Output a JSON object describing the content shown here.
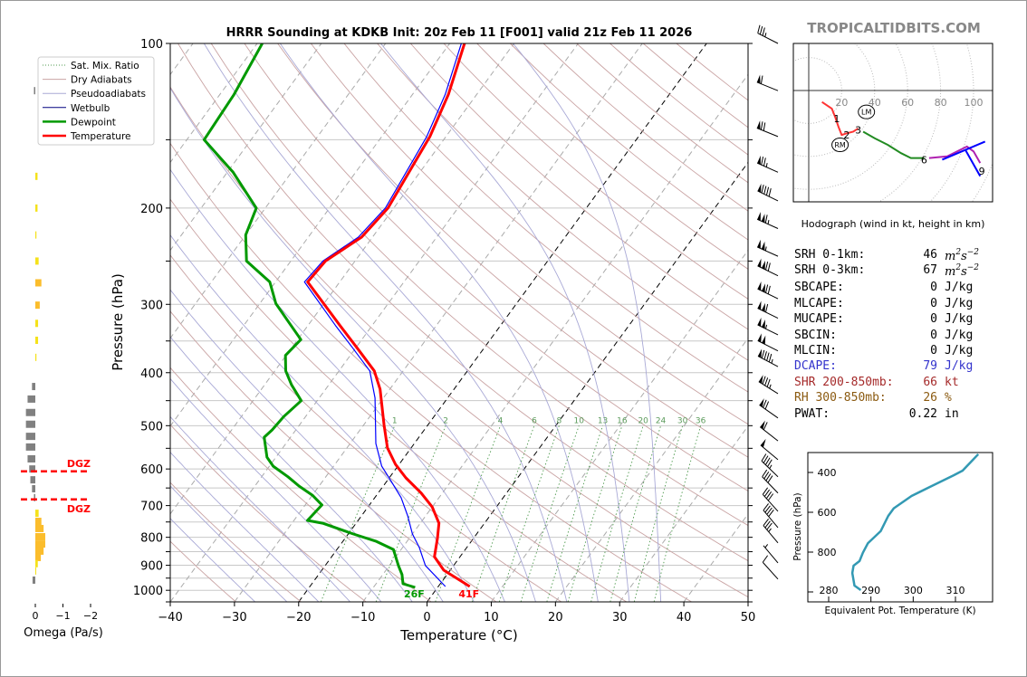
{
  "header": {
    "watermark": "TROPICALTIDBITS.COM"
  },
  "legend": [
    {
      "label": "Sat. Mix. Ratio",
      "color": "#4f9a4f",
      "style": "dotted"
    },
    {
      "label": "Dry Adiabats",
      "color": "#c9a3a3",
      "style": "solid"
    },
    {
      "label": "Pseudoadiabats",
      "color": "#a9a9d6",
      "style": "solid"
    },
    {
      "label": "Wetbulb",
      "color": "#000080",
      "style": "solid"
    },
    {
      "label": "Dewpoint",
      "color": "#009900",
      "style": "thick"
    },
    {
      "label": "Temperature",
      "color": "#ff0000",
      "style": "thick"
    }
  ],
  "stats": [
    {
      "label": "SRH 0-1km:",
      "value": "46",
      "unit": "m2s-2",
      "unit_base": "m",
      "unit_sup1": "2",
      "unit_mid": "s",
      "unit_sup2": "−2",
      "color": "#000000"
    },
    {
      "label": "SRH 0-3km:",
      "value": "67",
      "unit": "m2s-2",
      "unit_base": "m",
      "unit_sup1": "2",
      "unit_mid": "s",
      "unit_sup2": "−2",
      "color": "#000000"
    },
    {
      "label": "SBCAPE:",
      "value": "0",
      "unit": "J/kg",
      "color": "#000000"
    },
    {
      "label": "MLCAPE:",
      "value": "0",
      "unit": "J/kg",
      "color": "#000000"
    },
    {
      "label": "MUCAPE:",
      "value": "0",
      "unit": "J/kg",
      "color": "#000000"
    },
    {
      "label": "SBCIN:",
      "value": "0",
      "unit": "J/kg",
      "color": "#000000"
    },
    {
      "label": "MLCIN:",
      "value": "0",
      "unit": "J/kg",
      "color": "#000000"
    },
    {
      "label": "DCAPE:",
      "value": "79",
      "unit": "J/kg",
      "color": "#3333cc"
    },
    {
      "label": "SHR 200-850mb:",
      "value": "66",
      "unit": "kt",
      "color": "#a52a2a"
    },
    {
      "label": "RH 300-850mb:",
      "value": "26",
      "unit": "%",
      "color": "#8b5a10"
    },
    {
      "label": "PWAT:",
      "value": "0.22",
      "unit": "in",
      "color": "#000000"
    }
  ],
  "chart_data": [
    {
      "type": "line",
      "title": "HRRR Sounding at KDKB Init: 20z Feb 11 [F001] valid 21z Feb 11 2026",
      "xlabel": "Temperature (°C)",
      "ylabel": "Pressure (hPa)",
      "xlim": [
        -40,
        50
      ],
      "ylim": [
        1050,
        100
      ],
      "y_scale": "log",
      "skewed": true,
      "xticks": [
        -40,
        -30,
        -20,
        -10,
        0,
        10,
        20,
        30,
        40,
        50
      ],
      "xtick_labels": [
        "−40",
        "−30",
        "−20",
        "−10",
        "0",
        "10",
        "20",
        "30",
        "40",
        "50"
      ],
      "yticks": [
        100,
        200,
        300,
        400,
        500,
        600,
        700,
        800,
        900,
        1000
      ],
      "highlighted_isotherms": [
        0,
        -20
      ],
      "legend_position": "top-left",
      "series": [
        {
          "name": "Temperature",
          "color": "#ff0000",
          "pressure": [
            984,
            919,
            868,
            804,
            754,
            704,
            664,
            623,
            588,
            549,
            499,
            429,
            397,
            361,
            328,
            273,
            250,
            226,
            200,
            148,
            124,
            100
          ],
          "temperature": [
            4.9,
            -1.0,
            -4.0,
            -5.6,
            -7.1,
            -10.0,
            -13.3,
            -17.4,
            -20.6,
            -23.7,
            -26.8,
            -31.5,
            -34.5,
            -39.7,
            -45.0,
            -55.0,
            -54.6,
            -51.7,
            -50.9,
            -52.5,
            -54.4,
            -57.7
          ]
        },
        {
          "name": "Dewpoint",
          "color": "#009900",
          "pressure": [
            988,
            973,
            936,
            901,
            842,
            813,
            789,
            754,
            745,
            698,
            670,
            645,
            620,
            593,
            571,
            525,
            509,
            481,
            450,
            421,
            397,
            372,
            348,
            322,
            299,
            273,
            250,
            224,
            200,
            172,
            150,
            124,
            100
          ],
          "temperature": [
            -3.5,
            -5.8,
            -7.0,
            -8.6,
            -11.2,
            -14.9,
            -19.2,
            -25.2,
            -27.9,
            -27.4,
            -30.0,
            -33.1,
            -35.9,
            -39.4,
            -41.4,
            -44.1,
            -43.7,
            -43.4,
            -42.5,
            -45.8,
            -48.3,
            -50.1,
            -49.5,
            -53.6,
            -57.5,
            -60.9,
            -66.9,
            -70.0,
            -71.4,
            -79.1,
            -87.3,
            -87.8,
            -89.2
          ]
        },
        {
          "name": "Wetbulb",
          "color": "#0000ff",
          "pressure": [
            984,
            901,
            835,
            789,
            731,
            677,
            632,
            593,
            539,
            445,
            397,
            361,
            328,
            273,
            250,
            226,
            200,
            148,
            124,
            100
          ],
          "temperature": [
            1.1,
            -4.4,
            -7.4,
            -10.0,
            -12.8,
            -15.9,
            -19.3,
            -22.5,
            -26.0,
            -31.3,
            -35.2,
            -40.4,
            -45.7,
            -55.5,
            -55.0,
            -52.2,
            -51.3,
            -53.0,
            -54.9,
            -58.2
          ]
        }
      ],
      "surface_labels": {
        "dewpoint": "26F",
        "temperature": "41F"
      },
      "mixing_ratio_lines": [
        1,
        2,
        4,
        6,
        8,
        10,
        13,
        16,
        20,
        24,
        30,
        36
      ],
      "wind_barbs": [
        {
          "p": 100,
          "speed_kt": 35,
          "dir_deg": 297
        },
        {
          "p": 122,
          "speed_kt": 60,
          "dir_deg": 292
        },
        {
          "p": 148,
          "speed_kt": 70,
          "dir_deg": 292
        },
        {
          "p": 172,
          "speed_kt": 75,
          "dir_deg": 294
        },
        {
          "p": 194,
          "speed_kt": 90,
          "dir_deg": 296
        },
        {
          "p": 218,
          "speed_kt": 115,
          "dir_deg": 294
        },
        {
          "p": 245,
          "speed_kt": 105,
          "dir_deg": 294
        },
        {
          "p": 266,
          "speed_kt": 120,
          "dir_deg": 296
        },
        {
          "p": 293,
          "speed_kt": 120,
          "dir_deg": 296
        },
        {
          "p": 318,
          "speed_kt": 110,
          "dir_deg": 296
        },
        {
          "p": 341,
          "speed_kt": 105,
          "dir_deg": 296
        },
        {
          "p": 365,
          "speed_kt": 100,
          "dir_deg": 297
        },
        {
          "p": 390,
          "speed_kt": 95,
          "dir_deg": 298
        },
        {
          "p": 437,
          "speed_kt": 85,
          "dir_deg": 302
        },
        {
          "p": 484,
          "speed_kt": 70,
          "dir_deg": 305
        },
        {
          "p": 533,
          "speed_kt": 60,
          "dir_deg": 308
        },
        {
          "p": 577,
          "speed_kt": 50,
          "dir_deg": 310
        },
        {
          "p": 620,
          "speed_kt": 45,
          "dir_deg": 314
        },
        {
          "p": 664,
          "speed_kt": 40,
          "dir_deg": 316
        },
        {
          "p": 717,
          "speed_kt": 40,
          "dir_deg": 318
        },
        {
          "p": 768,
          "speed_kt": 40,
          "dir_deg": 320
        },
        {
          "p": 819,
          "speed_kt": 35,
          "dir_deg": 320
        },
        {
          "p": 891,
          "speed_kt": 5,
          "dir_deg": 320
        },
        {
          "p": 954,
          "speed_kt": 10,
          "dir_deg": 318
        }
      ]
    },
    {
      "type": "bar",
      "xlabel": "Omega (Pa/s)",
      "xticks": [
        0,
        -1,
        -2
      ],
      "xtick_labels": [
        "0",
        "−1",
        "−2"
      ],
      "pressure": [
        122,
        175,
        200,
        224,
        250,
        274,
        301,
        325,
        349,
        375,
        424,
        447,
        473,
        497,
        523,
        547,
        575,
        600,
        628,
        652,
        677,
        723,
        748,
        771,
        798,
        823,
        848,
        871,
        894,
        922,
        958
      ],
      "omega": [
        0.05,
        -0.08,
        -0.08,
        -0.04,
        -0.12,
        -0.22,
        -0.16,
        -0.1,
        -0.1,
        -0.04,
        0.12,
        0.28,
        0.34,
        0.34,
        0.34,
        0.34,
        0.28,
        0.22,
        0.18,
        0.12,
        0.05,
        -0.12,
        -0.22,
        -0.3,
        -0.36,
        -0.36,
        -0.3,
        -0.2,
        -0.09,
        -0.02,
        0.1
      ],
      "colors": {
        "sinking": "#808080",
        "rising_weak": "#f5e21a",
        "rising_strong": "#fbbd2c"
      },
      "dgz": {
        "label": "DGZ",
        "pressure_top": 606,
        "pressure_bottom": 682,
        "color": "#ff0000"
      }
    },
    {
      "type": "line",
      "caption": "Hodograph (wind in kt, height in km)",
      "rings": [
        20,
        40,
        60,
        80,
        100
      ],
      "segments": [
        {
          "color": "#ff3333",
          "points": [
            [
              8,
              -7
            ],
            [
              14,
              -11
            ],
            [
              16,
              -16
            ],
            [
              18,
              -22
            ],
            [
              20,
              -27
            ],
            [
              23,
              -26
            ],
            [
              27,
              -25
            ],
            [
              30,
              -23
            ]
          ]
        },
        {
          "color": "#228b22",
          "points": [
            [
              33,
              -25
            ],
            [
              40,
              -29
            ],
            [
              48,
              -33
            ],
            [
              56,
              -38
            ],
            [
              62,
              -41
            ],
            [
              70,
              -41
            ]
          ]
        },
        {
          "color": "#b020b0",
          "points": [
            [
              73,
              -41
            ],
            [
              84,
              -40
            ],
            [
              92,
              -36
            ],
            [
              96,
              -34
            ],
            [
              100,
              -37
            ],
            [
              104,
              -44
            ]
          ]
        },
        {
          "color": "#0000ff",
          "points": [
            [
              81,
              -42
            ],
            [
              107,
              -31
            ]
          ]
        },
        {
          "color": "#0000ff",
          "points": [
            [
              95,
              -36
            ],
            [
              104,
              -52
            ]
          ]
        }
      ],
      "height_labels": [
        {
          "text": "1",
          "u": 17,
          "v": -17
        },
        {
          "text": "2",
          "u": 23,
          "v": -27
        },
        {
          "text": "3",
          "u": 30,
          "v": -24
        },
        {
          "text": "6",
          "u": 70,
          "v": -42
        },
        {
          "text": "9",
          "u": 105,
          "v": -49
        }
      ],
      "storm_motion": [
        {
          "label": "RM",
          "u": 19,
          "v": -33
        },
        {
          "label": "LM",
          "u": 35,
          "v": -13
        }
      ]
    },
    {
      "type": "line",
      "xlabel": "Equivalent Pot. Temperature (K)",
      "ylabel": "Pressure (hPa)",
      "xlim": [
        275,
        319
      ],
      "ylim": [
        1050,
        300
      ],
      "xticks": [
        280,
        290,
        300,
        310
      ],
      "yticks": [
        400,
        600,
        800
      ],
      "color": "#3399b3",
      "pressure": [
        991,
        968,
        905,
        868,
        845,
        803,
        755,
        695,
        618,
        580,
        518,
        473,
        414,
        391,
        308
      ],
      "theta_e": [
        287.6,
        286.1,
        285.6,
        285.9,
        287.3,
        288.1,
        289.3,
        292.3,
        294.1,
        295.4,
        299.6,
        303.9,
        309.6,
        311.7,
        315.4
      ]
    }
  ]
}
